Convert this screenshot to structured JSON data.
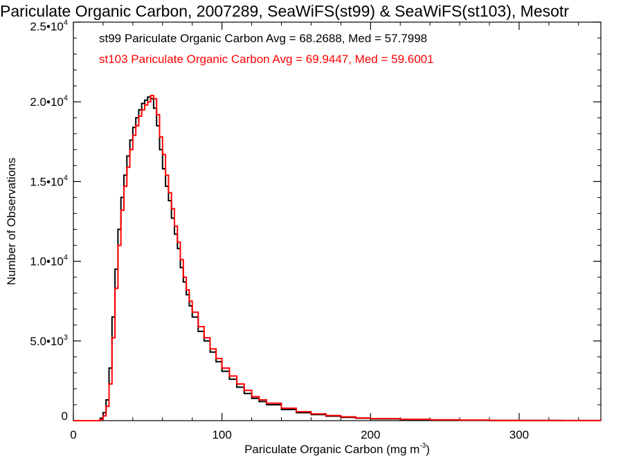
{
  "chart_data": {
    "type": "line",
    "title": "Pariculate Organic Carbon, 2007289, SeaWiFS(st99) & SeaWiFS(st103), Mesotr",
    "xlabel": "Pariculate Organic Carbon (mg m",
    "xlabel_sup": "-3",
    "xlabel_close": ")",
    "ylabel": "Number of Observations",
    "xlim": [
      0,
      355
    ],
    "ylim": [
      0,
      25000
    ],
    "x_ticks": [
      {
        "value": 0,
        "label": "0"
      },
      {
        "value": 100,
        "label": "100"
      },
      {
        "value": 200,
        "label": "200"
      },
      {
        "value": 300,
        "label": "300"
      }
    ],
    "y_ticks": [
      {
        "value": 0,
        "mant": "0",
        "exp": ""
      },
      {
        "value": 5000,
        "mant": "5.0•10",
        "exp": "3"
      },
      {
        "value": 10000,
        "mant": "1.0•10",
        "exp": "4"
      },
      {
        "value": 15000,
        "mant": "1.5•10",
        "exp": "4"
      },
      {
        "value": 20000,
        "mant": "2.0•10",
        "exp": "4"
      },
      {
        "value": 25000,
        "mant": "2.5•10",
        "exp": "4"
      }
    ],
    "annotations": [
      "st99 Pariculate Organic Carbon Avg = 68.2688, Med = 57.7998",
      "st103 Pariculate Organic Carbon Avg = 69.9447, Med = 59.6001"
    ],
    "series": [
      {
        "color": "#000000",
        "x": [
          0,
          15,
          18,
          20,
          22,
          24,
          26,
          28,
          30,
          32,
          34,
          36,
          38,
          40,
          42,
          44,
          46,
          48,
          50,
          52,
          54,
          56,
          58,
          60,
          62,
          64,
          66,
          68,
          70,
          72,
          74,
          76,
          78,
          80,
          84,
          88,
          92,
          96,
          100,
          105,
          110,
          115,
          120,
          125,
          130,
          140,
          150,
          160,
          170,
          180,
          190,
          200,
          220,
          240,
          260,
          280,
          300,
          330,
          355
        ],
        "values": [
          0,
          0,
          150,
          500,
          1300,
          3300,
          6500,
          9500,
          12000,
          14000,
          15400,
          16600,
          17600,
          18400,
          19000,
          19500,
          19900,
          20100,
          20300,
          20200,
          19600,
          18500,
          17000,
          15800,
          14700,
          13800,
          12700,
          11700,
          10800,
          9600,
          8700,
          7900,
          7200,
          6500,
          5600,
          5000,
          4300,
          3700,
          3100,
          2600,
          2100,
          1700,
          1400,
          1200,
          1000,
          700,
          500,
          380,
          280,
          210,
          150,
          110,
          70,
          40,
          25,
          15,
          8,
          4,
          0
        ]
      },
      {
        "color": "#ff0000",
        "x": [
          0,
          15,
          18,
          20,
          22,
          24,
          26,
          28,
          30,
          32,
          34,
          36,
          38,
          40,
          42,
          44,
          46,
          48,
          50,
          52,
          54,
          56,
          58,
          60,
          62,
          64,
          66,
          68,
          70,
          72,
          74,
          76,
          78,
          80,
          84,
          88,
          92,
          96,
          100,
          105,
          110,
          115,
          120,
          125,
          130,
          140,
          150,
          160,
          170,
          180,
          190,
          200,
          220,
          240,
          260,
          280,
          300,
          330,
          355
        ],
        "values": [
          0,
          0,
          80,
          300,
          900,
          2300,
          5200,
          8300,
          11000,
          13200,
          14700,
          15900,
          17000,
          17900,
          18500,
          19100,
          19500,
          19800,
          20000,
          20400,
          20200,
          19200,
          17800,
          16700,
          15400,
          14300,
          13300,
          12200,
          11200,
          10100,
          9000,
          8200,
          7500,
          6800,
          5900,
          5200,
          4500,
          3900,
          3300,
          2800,
          2300,
          1900,
          1500,
          1300,
          1100,
          780,
          560,
          420,
          320,
          240,
          170,
          130,
          85,
          50,
          30,
          18,
          10,
          5,
          0
        ]
      }
    ]
  }
}
